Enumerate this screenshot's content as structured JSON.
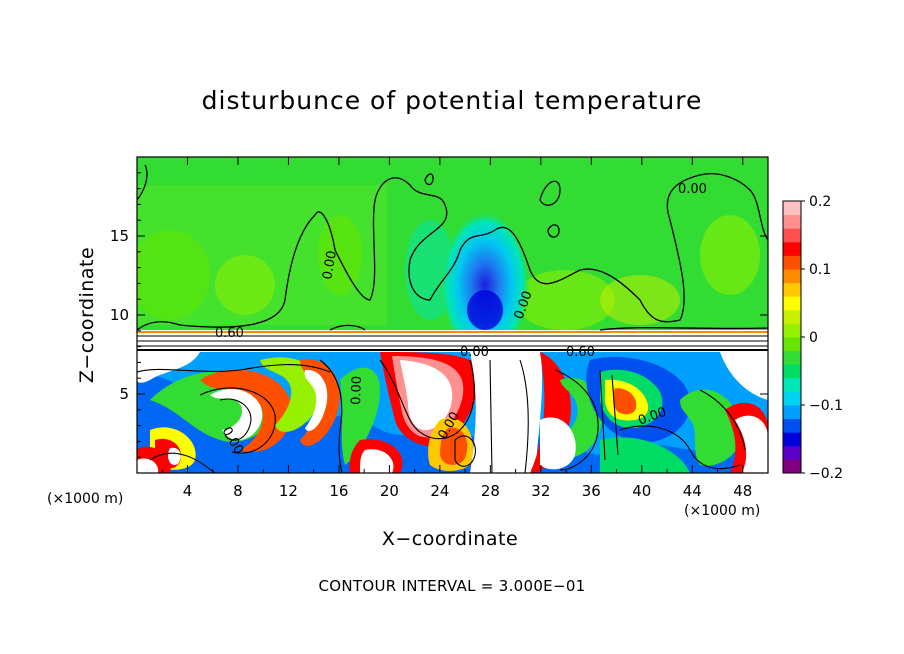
{
  "chart_data": {
    "type": "heatmap",
    "title": "disturbunce of potential temperature",
    "xlabel": "X−coordinate",
    "ylabel": "Z−coordinate",
    "x_unit": "(×1000 m)",
    "x_ticks": [
      4,
      8,
      12,
      16,
      20,
      24,
      28,
      32,
      36,
      40,
      44,
      48
    ],
    "y_ticks": [
      5,
      10,
      15
    ],
    "xlim": [
      0,
      50
    ],
    "ylim": [
      0,
      20
    ],
    "colorbar": {
      "ticks": [
        0.2,
        0.1,
        0,
        -0.1,
        -0.2
      ],
      "tick_labels": [
        "0.2",
        "0.1",
        "0",
        "−0.1",
        "−0.2"
      ],
      "range": [
        -0.2,
        0.2
      ],
      "colors": [
        "#800080",
        "#5a00c8",
        "#0000dc",
        "#0050f0",
        "#00a0ff",
        "#00d2f0",
        "#00e6b4",
        "#00dc64",
        "#32dc32",
        "#64e600",
        "#96f000",
        "#c8f000",
        "#ffff00",
        "#ffc800",
        "#ff8c00",
        "#ff5000",
        "#ff0000",
        "#ff5050",
        "#ff9090",
        "#ffc0c0"
      ]
    },
    "contour_labels": [
      "0.00",
      "0.00",
      "0.00",
      "0.00",
      "0.60",
      "0.60",
      "0.00",
      "0.00",
      "0.00",
      "0.00"
    ],
    "contour_interval": "CONTOUR INTERVAL = 3.000E−01"
  }
}
